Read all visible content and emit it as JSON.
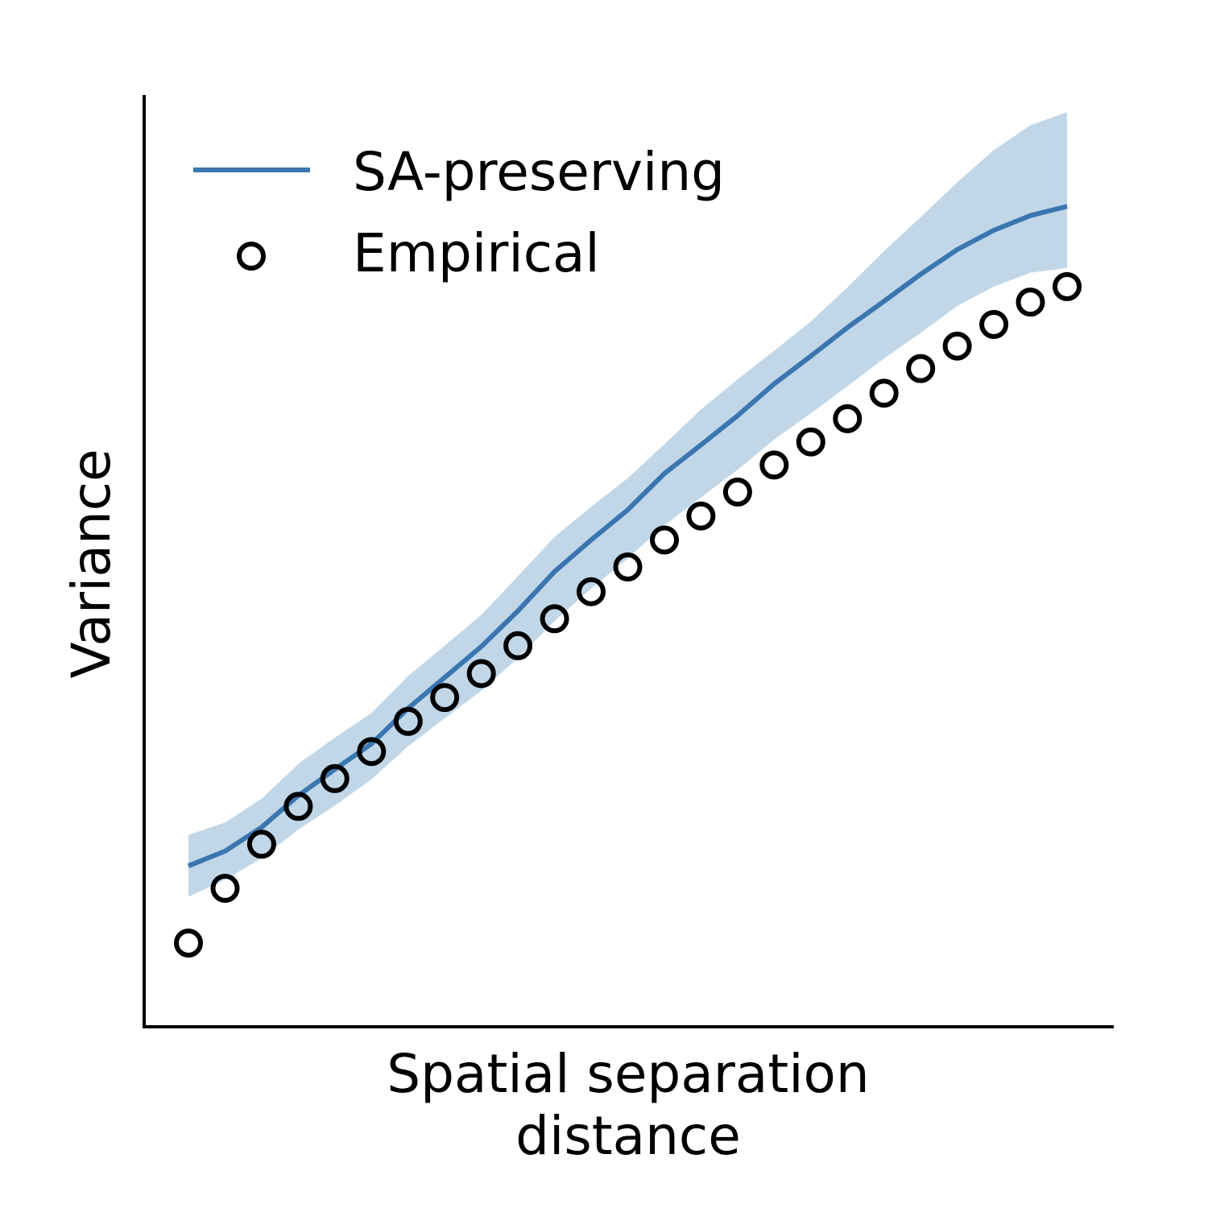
{
  "chart_data": {
    "type": "line",
    "title": "",
    "xlabel_lines": [
      "Spatial separation",
      "distance"
    ],
    "ylabel": "Variance",
    "xlim": [
      0,
      26.4
    ],
    "ylim": [
      0,
      10
    ],
    "grid": false,
    "legend_position": "top-left",
    "series": [
      {
        "name": "SA-preserving",
        "kind": "line-with-band",
        "color": "#3a76b0",
        "band_color": "#c1d7e8",
        "x": [
          1,
          2,
          3,
          4,
          5,
          6,
          7,
          8,
          9,
          10,
          11,
          12,
          13,
          14,
          15,
          16,
          17,
          18,
          19,
          20,
          21,
          22,
          23,
          24,
          25
        ],
        "y": [
          1.5,
          1.69,
          2.0,
          2.41,
          2.75,
          3.08,
          3.54,
          3.94,
          4.34,
          4.8,
          5.31,
          5.72,
          6.11,
          6.58,
          6.95,
          7.33,
          7.74,
          8.1,
          8.47,
          8.81,
          9.16,
          9.48,
          9.73,
          9.92,
          10.04
        ],
        "lower": [
          1.1,
          1.32,
          1.6,
          1.97,
          2.28,
          2.62,
          3.05,
          3.41,
          3.77,
          4.19,
          4.67,
          5.09,
          5.48,
          5.91,
          6.27,
          6.63,
          7.02,
          7.36,
          7.71,
          8.07,
          8.4,
          8.75,
          9.0,
          9.18,
          9.24
        ],
        "upper": [
          1.9,
          2.06,
          2.37,
          2.82,
          3.16,
          3.48,
          3.96,
          4.35,
          4.75,
          5.25,
          5.76,
          6.15,
          6.52,
          6.96,
          7.41,
          7.8,
          8.17,
          8.55,
          8.99,
          9.46,
          9.9,
          10.35,
          10.77,
          11.09,
          11.26
        ]
      },
      {
        "name": "Empirical",
        "kind": "scatter",
        "color": "#000000",
        "marker": "open-circle",
        "x": [
          1,
          2,
          3,
          4,
          5,
          6,
          7,
          8,
          9,
          10,
          11,
          12,
          13,
          14,
          15,
          16,
          17,
          18,
          19,
          20,
          21,
          22,
          23,
          24,
          25
        ],
        "y": [
          0.5,
          1.21,
          1.78,
          2.27,
          2.63,
          2.98,
          3.37,
          3.68,
          3.99,
          4.35,
          4.7,
          5.05,
          5.37,
          5.72,
          6.03,
          6.34,
          6.69,
          6.99,
          7.29,
          7.62,
          7.94,
          8.23,
          8.51,
          8.8,
          9.0
        ]
      }
    ]
  }
}
